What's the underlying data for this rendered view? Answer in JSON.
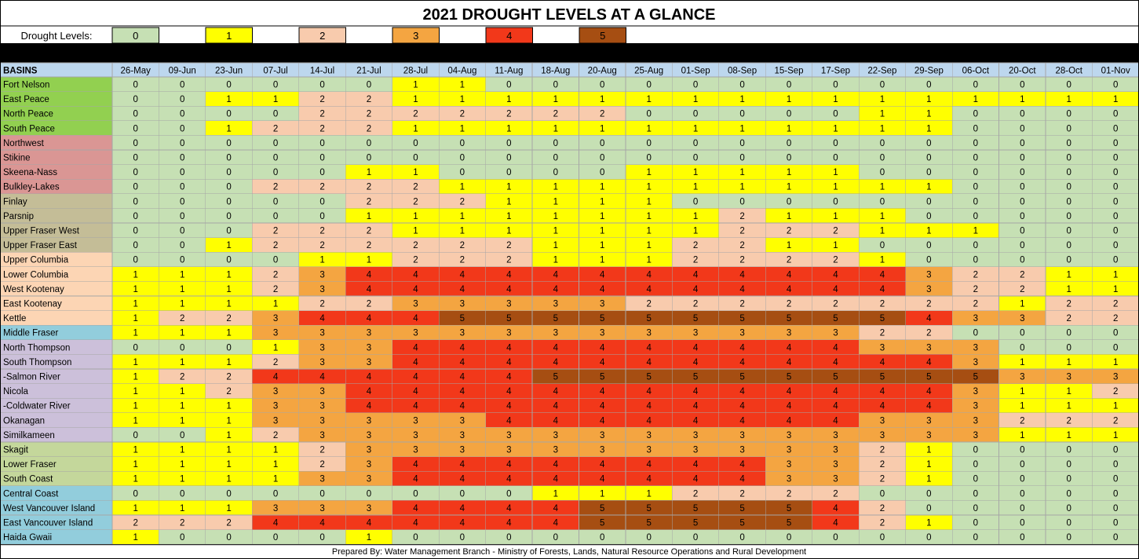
{
  "title": "2021 DROUGHT LEVELS AT A GLANCE",
  "legend": {
    "label": "Drought Levels:",
    "levels": [
      "0",
      "1",
      "2",
      "3",
      "4",
      "5"
    ]
  },
  "footer": "Prepared By:  Water Management Branch - Ministry of Forests, Lands, Natural Resource Operations and Rural Development",
  "colors": {
    "level_0": "#c6e0b4",
    "level_1": "#ffff00",
    "level_2": "#f8cbad",
    "level_3": "#f4a541",
    "level_4": "#f2381a",
    "level_5": "#a64e12",
    "header_cells": "#bdd7ee",
    "black_band": "#000000",
    "border": "#a6a6a6"
  },
  "chart_data": {
    "type": "heatmap",
    "title": "2021 DROUGHT LEVELS AT A GLANCE",
    "row_header": "BASINS",
    "columns": [
      "26-May",
      "09-Jun",
      "23-Jun",
      "07-Jul",
      "14-Jul",
      "21-Jul",
      "28-Jul",
      "04-Aug",
      "11-Aug",
      "18-Aug",
      "20-Aug",
      "25-Aug",
      "01-Sep",
      "08-Sep",
      "15-Sep",
      "17-Sep",
      "22-Sep",
      "29-Sep",
      "06-Oct",
      "20-Oct",
      "28-Oct",
      "01-Nov"
    ],
    "rows": [
      {
        "basin": "Fort Nelson",
        "color": "#92d050",
        "values": [
          0,
          0,
          0,
          0,
          0,
          0,
          1,
          1,
          0,
          0,
          0,
          0,
          0,
          0,
          0,
          0,
          0,
          0,
          0,
          0,
          0,
          0
        ]
      },
      {
        "basin": "East Peace",
        "color": "#92d050",
        "values": [
          0,
          0,
          1,
          1,
          2,
          2,
          1,
          1,
          1,
          1,
          1,
          1,
          1,
          1,
          1,
          1,
          1,
          1,
          1,
          1,
          1,
          1
        ]
      },
      {
        "basin": "North Peace",
        "color": "#92d050",
        "values": [
          0,
          0,
          0,
          0,
          2,
          2,
          2,
          2,
          2,
          2,
          2,
          0,
          0,
          0,
          0,
          0,
          1,
          1,
          0,
          0,
          0,
          0
        ]
      },
      {
        "basin": "South Peace",
        "color": "#92d050",
        "values": [
          0,
          0,
          1,
          2,
          2,
          2,
          1,
          1,
          1,
          1,
          1,
          1,
          1,
          1,
          1,
          1,
          1,
          1,
          0,
          0,
          0,
          0
        ]
      },
      {
        "basin": "Northwest",
        "color": "#da9694",
        "values": [
          0,
          0,
          0,
          0,
          0,
          0,
          0,
          0,
          0,
          0,
          0,
          0,
          0,
          0,
          0,
          0,
          0,
          0,
          0,
          0,
          0,
          0
        ]
      },
      {
        "basin": "Stikine",
        "color": "#da9694",
        "values": [
          0,
          0,
          0,
          0,
          0,
          0,
          0,
          0,
          0,
          0,
          0,
          0,
          0,
          0,
          0,
          0,
          0,
          0,
          0,
          0,
          0,
          0
        ]
      },
      {
        "basin": "Skeena-Nass",
        "color": "#da9694",
        "values": [
          0,
          0,
          0,
          0,
          0,
          1,
          1,
          0,
          0,
          0,
          0,
          1,
          1,
          1,
          1,
          1,
          0,
          0,
          0,
          0,
          0,
          0
        ]
      },
      {
        "basin": "Bulkley-Lakes",
        "color": "#da9694",
        "values": [
          0,
          0,
          0,
          2,
          2,
          2,
          2,
          1,
          1,
          1,
          1,
          1,
          1,
          1,
          1,
          1,
          1,
          1,
          0,
          0,
          0,
          0
        ]
      },
      {
        "basin": "Finlay",
        "color": "#c4bd97",
        "values": [
          0,
          0,
          0,
          0,
          0,
          2,
          2,
          2,
          1,
          1,
          1,
          1,
          0,
          0,
          0,
          0,
          0,
          0,
          0,
          0,
          0,
          0
        ]
      },
      {
        "basin": "Parsnip",
        "color": "#c4bd97",
        "values": [
          0,
          0,
          0,
          0,
          0,
          1,
          1,
          1,
          1,
          1,
          1,
          1,
          1,
          2,
          1,
          1,
          1,
          0,
          0,
          0,
          0,
          0
        ]
      },
      {
        "basin": "Upper Fraser West",
        "color": "#c4bd97",
        "values": [
          0,
          0,
          0,
          2,
          2,
          2,
          1,
          1,
          1,
          1,
          1,
          1,
          1,
          2,
          2,
          2,
          1,
          1,
          1,
          0,
          0,
          0
        ]
      },
      {
        "basin": "Upper Fraser East",
        "color": "#c4bd97",
        "values": [
          0,
          0,
          1,
          2,
          2,
          2,
          2,
          2,
          2,
          1,
          1,
          1,
          2,
          2,
          1,
          1,
          0,
          0,
          0,
          0,
          0,
          0
        ]
      },
      {
        "basin": "Upper Columbia",
        "color": "#fcd5b4",
        "values": [
          0,
          0,
          0,
          0,
          1,
          1,
          2,
          2,
          2,
          1,
          1,
          1,
          2,
          2,
          2,
          2,
          1,
          0,
          0,
          0,
          0,
          0
        ]
      },
      {
        "basin": "Lower Columbia",
        "color": "#fcd5b4",
        "values": [
          1,
          1,
          1,
          2,
          3,
          4,
          4,
          4,
          4,
          4,
          4,
          4,
          4,
          4,
          4,
          4,
          4,
          3,
          2,
          2,
          1,
          1
        ]
      },
      {
        "basin": "West Kootenay",
        "color": "#fcd5b4",
        "values": [
          1,
          1,
          1,
          2,
          3,
          4,
          4,
          4,
          4,
          4,
          4,
          4,
          4,
          4,
          4,
          4,
          4,
          3,
          2,
          2,
          1,
          1
        ]
      },
      {
        "basin": "East Kootenay",
        "color": "#fcd5b4",
        "values": [
          1,
          1,
          1,
          1,
          2,
          2,
          3,
          3,
          3,
          3,
          3,
          2,
          2,
          2,
          2,
          2,
          2,
          2,
          2,
          1,
          2,
          2
        ]
      },
      {
        "basin": "Kettle",
        "color": "#fcd5b4",
        "values": [
          1,
          2,
          2,
          3,
          4,
          4,
          4,
          5,
          5,
          5,
          5,
          5,
          5,
          5,
          5,
          5,
          5,
          4,
          3,
          3,
          2,
          2
        ]
      },
      {
        "basin": "Middle Fraser",
        "color": "#92cddc",
        "values": [
          1,
          1,
          1,
          3,
          3,
          3,
          3,
          3,
          3,
          3,
          3,
          3,
          3,
          3,
          3,
          3,
          2,
          2,
          0,
          0,
          0,
          0
        ]
      },
      {
        "basin": "North Thompson",
        "color": "#ccc0da",
        "values": [
          0,
          0,
          0,
          1,
          3,
          3,
          4,
          4,
          4,
          4,
          4,
          4,
          4,
          4,
          4,
          4,
          3,
          3,
          3,
          0,
          0,
          0
        ]
      },
      {
        "basin": "South Thompson",
        "color": "#ccc0da",
        "values": [
          1,
          1,
          1,
          2,
          3,
          3,
          4,
          4,
          4,
          4,
          4,
          4,
          4,
          4,
          4,
          4,
          4,
          4,
          3,
          1,
          1,
          1
        ]
      },
      {
        "basin": " -Salmon River",
        "color": "#ccc0da",
        "values": [
          1,
          2,
          2,
          4,
          4,
          4,
          4,
          4,
          4,
          5,
          5,
          5,
          5,
          5,
          5,
          5,
          5,
          5,
          5,
          3,
          3,
          3
        ]
      },
      {
        "basin": "Nicola",
        "color": "#ccc0da",
        "values": [
          1,
          1,
          2,
          3,
          3,
          4,
          4,
          4,
          4,
          4,
          4,
          4,
          4,
          4,
          4,
          4,
          4,
          4,
          3,
          1,
          1,
          2
        ]
      },
      {
        "basin": " -Coldwater River",
        "color": "#ccc0da",
        "values": [
          1,
          1,
          1,
          3,
          3,
          4,
          4,
          4,
          4,
          4,
          4,
          4,
          4,
          4,
          4,
          4,
          4,
          4,
          3,
          1,
          1,
          1
        ]
      },
      {
        "basin": "Okanagan",
        "color": "#ccc0da",
        "values": [
          1,
          1,
          1,
          3,
          3,
          3,
          3,
          3,
          4,
          4,
          4,
          4,
          4,
          4,
          4,
          4,
          3,
          3,
          3,
          2,
          2,
          2
        ]
      },
      {
        "basin": "Similkameen",
        "color": "#ccc0da",
        "values": [
          0,
          0,
          1,
          2,
          3,
          3,
          3,
          3,
          3,
          3,
          3,
          3,
          3,
          3,
          3,
          3,
          3,
          3,
          3,
          1,
          1,
          1
        ]
      },
      {
        "basin": "Skagit",
        "color": "#c4d79b",
        "values": [
          1,
          1,
          1,
          1,
          2,
          3,
          3,
          3,
          3,
          3,
          3,
          3,
          3,
          3,
          3,
          3,
          2,
          1,
          0,
          0,
          0,
          0
        ]
      },
      {
        "basin": "Lower Fraser",
        "color": "#c4d79b",
        "values": [
          1,
          1,
          1,
          1,
          2,
          3,
          4,
          4,
          4,
          4,
          4,
          4,
          4,
          4,
          3,
          3,
          2,
          1,
          0,
          0,
          0,
          0
        ]
      },
      {
        "basin": "South Coast",
        "color": "#c4d79b",
        "values": [
          1,
          1,
          1,
          1,
          3,
          3,
          4,
          4,
          4,
          4,
          4,
          4,
          4,
          4,
          3,
          3,
          2,
          1,
          0,
          0,
          0,
          0
        ]
      },
      {
        "basin": "Central Coast",
        "color": "#92cddc",
        "values": [
          0,
          0,
          0,
          0,
          0,
          0,
          0,
          0,
          0,
          1,
          1,
          1,
          2,
          2,
          2,
          2,
          0,
          0,
          0,
          0,
          0,
          0
        ]
      },
      {
        "basin": "West Vancouver Island",
        "color": "#92cddc",
        "values": [
          1,
          1,
          1,
          3,
          3,
          3,
          4,
          4,
          4,
          4,
          5,
          5,
          5,
          5,
          5,
          4,
          2,
          0,
          0,
          0,
          0,
          0
        ]
      },
      {
        "basin": "East Vancouver Island",
        "color": "#92cddc",
        "values": [
          2,
          2,
          2,
          4,
          4,
          4,
          4,
          4,
          4,
          4,
          5,
          5,
          5,
          5,
          5,
          4,
          2,
          1,
          0,
          0,
          0,
          0
        ]
      },
      {
        "basin": "Haida Gwaii",
        "color": "#92cddc",
        "values": [
          1,
          0,
          0,
          0,
          0,
          1,
          0,
          0,
          0,
          0,
          0,
          0,
          0,
          0,
          0,
          0,
          0,
          0,
          0,
          0,
          0,
          0
        ]
      }
    ]
  }
}
